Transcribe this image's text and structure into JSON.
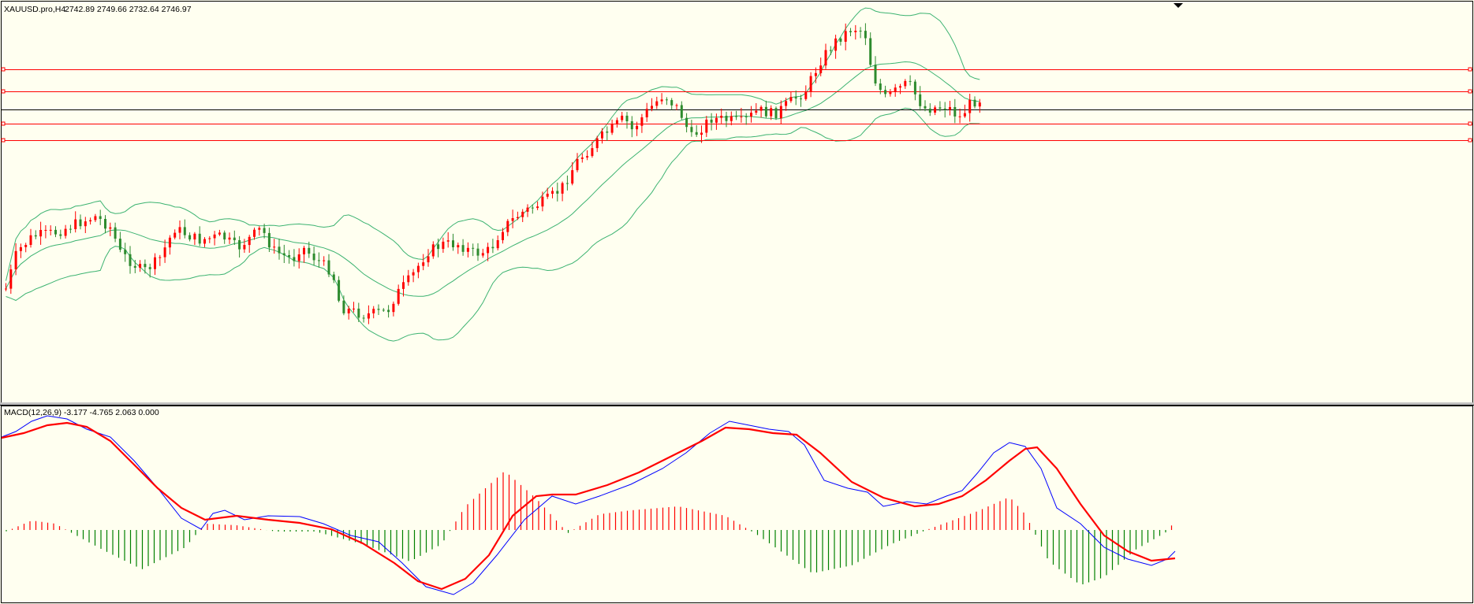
{
  "main_header": {
    "symbol": "XAUUSD.pro,H4",
    "ohlc": "2742.89 2749.66 2732.64 2746.97"
  },
  "macd_header": {
    "label": "MACD(12,26,9) -3.177 -4.765 2.063 0.000"
  },
  "colors": {
    "background": "#fffff0",
    "bull": "#ff0000",
    "bear": "#2e8b2e",
    "bands": "#3cb371",
    "macd_line": "#0000ff",
    "signal_line": "#ff0000",
    "hist_pos": "#ff0000",
    "hist_neg": "#008000",
    "level_line": "#ff0000",
    "price_line": "#000000"
  },
  "chart_data": [
    {
      "type": "candlestick",
      "symbol": "XAUUSD.pro",
      "timeframe": "H4",
      "last_ohlc": {
        "open": 2742.89,
        "high": 2749.66,
        "low": 2732.64,
        "close": 2746.97
      },
      "indicators": [
        "Bollinger Bands"
      ],
      "horizontal_levels": {
        "red": [
          2790,
          2772,
          2746,
          2733
        ],
        "black": [
          2752
        ]
      },
      "grid": false
    },
    {
      "type": "line",
      "name": "MACD(12,26,9)",
      "values": {
        "macd": -3.177,
        "signal": -4.765,
        "histogram": 2.063,
        "extra": 0.0
      },
      "series": [
        "MACD",
        "Signal",
        "Histogram"
      ],
      "grid": false
    }
  ]
}
